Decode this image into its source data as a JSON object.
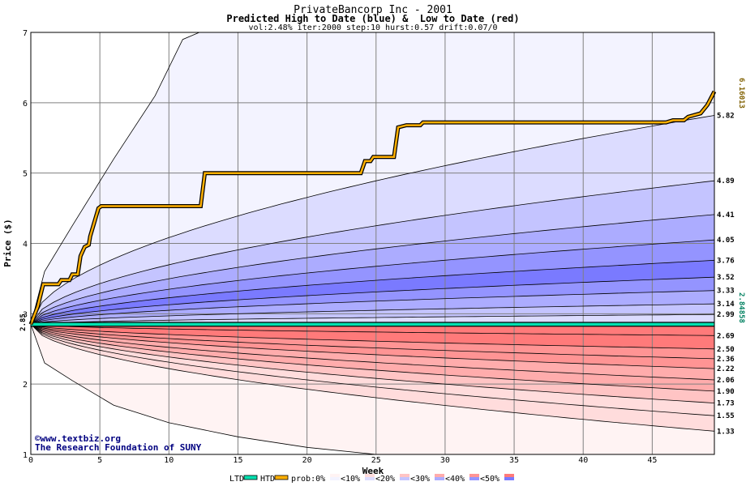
{
  "chart_data": {
    "type": "area",
    "title": "PrivateBancorp Inc - 2001",
    "subtitle": "Predicted High to Date (blue) &  Low to Date (red)",
    "params": "vol:2.48% iter:2000 step:10 hurst:0.57 drift:0.07/0",
    "xlabel": "Week",
    "ylabel": "Price ($)",
    "xlim": [
      0,
      49.5
    ],
    "ylim": [
      1,
      7
    ],
    "x_ticks": [
      0,
      5,
      10,
      15,
      20,
      25,
      30,
      35,
      40,
      45
    ],
    "y_ticks": [
      1,
      2,
      3,
      4,
      5,
      6,
      7
    ],
    "grid": true,
    "start_price": 2.85,
    "start_label": "2.85",
    "htd_end_label": "6.16013",
    "ltd_end_label": "2.84858",
    "upper_percentile_ends": [
      5.82,
      4.89,
      4.41,
      4.05,
      3.76,
      3.52,
      3.33,
      3.14,
      2.99
    ],
    "upper_percentile_labels": [
      "5.82",
      "4.89",
      "4.41",
      "4.05",
      "3.76",
      "3.52",
      "3.33",
      "3.14",
      "2.99"
    ],
    "lower_percentile_ends": [
      2.69,
      2.5,
      2.36,
      2.22,
      2.06,
      1.9,
      1.73,
      1.55,
      1.33
    ],
    "lower_percentile_labels": [
      "2.69",
      "2.50",
      "2.36",
      "2.22",
      "2.06",
      "1.90",
      "1.73",
      "1.55",
      "1.33"
    ],
    "upper_max_path": [
      [
        0,
        2.85
      ],
      [
        1,
        3.6
      ],
      [
        3,
        4.25
      ],
      [
        6,
        5.2
      ],
      [
        9,
        6.1
      ],
      [
        11,
        6.9
      ],
      [
        12.2,
        7.0
      ]
    ],
    "lower_min_path": [
      [
        0,
        2.85
      ],
      [
        1,
        2.3
      ],
      [
        3,
        2.05
      ],
      [
        6,
        1.7
      ],
      [
        10,
        1.45
      ],
      [
        15,
        1.25
      ],
      [
        20,
        1.1
      ],
      [
        25,
        1.0
      ]
    ],
    "htd_series": [
      [
        0,
        2.85
      ],
      [
        0.5,
        3.1
      ],
      [
        0.9,
        3.42
      ],
      [
        2.0,
        3.42
      ],
      [
        2.2,
        3.48
      ],
      [
        2.8,
        3.48
      ],
      [
        3.0,
        3.56
      ],
      [
        3.4,
        3.56
      ],
      [
        3.6,
        3.82
      ],
      [
        3.9,
        3.95
      ],
      [
        4.2,
        3.98
      ],
      [
        4.3,
        4.1
      ],
      [
        4.6,
        4.3
      ],
      [
        4.9,
        4.5
      ],
      [
        5.1,
        4.53
      ],
      [
        12.3,
        4.53
      ],
      [
        12.6,
        5.0
      ],
      [
        23.9,
        5.0
      ],
      [
        24.2,
        5.17
      ],
      [
        24.6,
        5.17
      ],
      [
        24.8,
        5.23
      ],
      [
        26.3,
        5.23
      ],
      [
        26.6,
        5.65
      ],
      [
        27.2,
        5.68
      ],
      [
        28.2,
        5.68
      ],
      [
        28.4,
        5.72
      ],
      [
        46.0,
        5.72
      ],
      [
        46.5,
        5.75
      ],
      [
        47.3,
        5.75
      ],
      [
        47.6,
        5.8
      ],
      [
        48.5,
        5.85
      ],
      [
        49.0,
        5.97
      ],
      [
        49.5,
        6.16
      ]
    ],
    "ltd_series": [
      [
        0,
        2.85
      ],
      [
        49.5,
        2.85
      ]
    ],
    "legend": [
      "LTD",
      "HTD",
      "prob:0%",
      "<10%",
      "<20%",
      "<30%",
      "<40%",
      "<50%"
    ],
    "credit_line1": "©www.textbiz.org",
    "credit_line2": "The Research Foundation of SUNY"
  },
  "colors": {
    "htd": "#ffb000",
    "ltd": "#00e0b0",
    "blue_bands": [
      "#f3f3ff",
      "#dcdcff",
      "#c4c4ff",
      "#acacff",
      "#9494ff",
      "#7a7aff"
    ],
    "red_bands": [
      "#fff3f3",
      "#ffdcdc",
      "#ffc4c4",
      "#ffacac",
      "#ff9494",
      "#ff7a7a"
    ]
  }
}
